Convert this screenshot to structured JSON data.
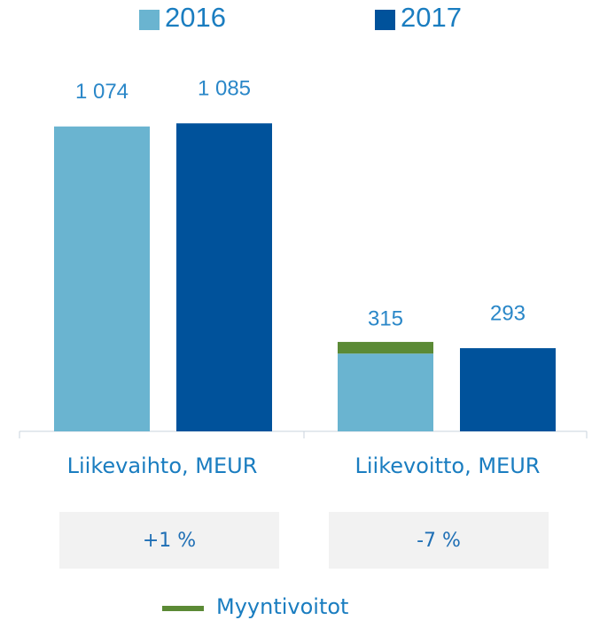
{
  "chart_data": {
    "type": "bar",
    "categories": [
      "Liikevaihto, MEUR",
      "Liikevoitto, MEUR"
    ],
    "series": [
      {
        "name": "2016",
        "color": "#6ab4d0",
        "values": [
          1074,
          274
        ],
        "value_labels": [
          "1 074",
          null
        ],
        "stack": "2016"
      },
      {
        "name": "Myyntivoitot",
        "color": "#5b8a35",
        "values": [
          null,
          41
        ],
        "stack": "2016"
      },
      {
        "name": "2017",
        "color": "#00529b",
        "values": [
          1085,
          293
        ],
        "value_labels": [
          "1 085",
          "293"
        ],
        "stack": "2017"
      }
    ],
    "stack_total_labels": [
      {
        "value": 315,
        "label": "315"
      }
    ],
    "changes": [
      "+1 %",
      "-7 %"
    ],
    "ylim": [
      0,
      1200
    ]
  }
}
